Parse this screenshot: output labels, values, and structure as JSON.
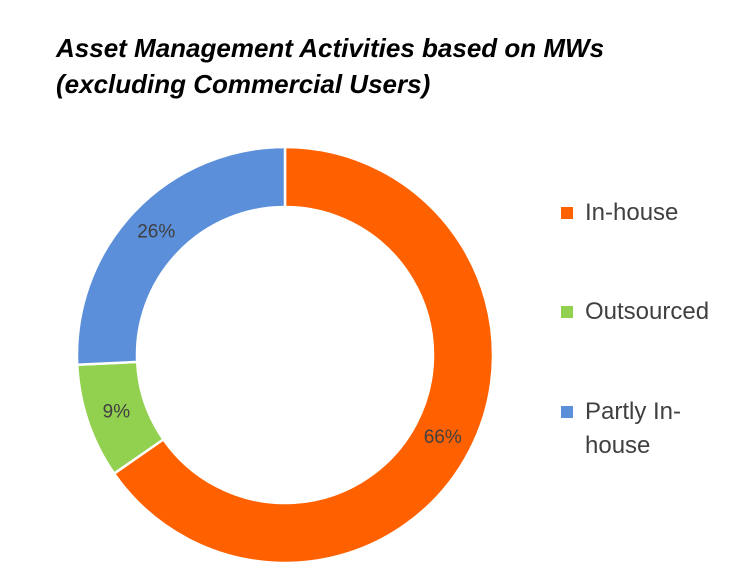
{
  "title_lines": [
    "Asset Management Activities based on MWs",
    "(excluding Commercial Users)"
  ],
  "chart_data": {
    "type": "pie",
    "variant": "donut",
    "title": "Asset Management Activities based on MWs (excluding Commercial Users)",
    "categories": [
      "In-house",
      "Outsourced",
      "Partly In-house"
    ],
    "values": [
      66,
      9,
      26
    ],
    "labels": [
      "66%",
      "9%",
      "26%"
    ],
    "unit": "%",
    "colors": [
      "#FF6100",
      "#92D050",
      "#5B8FD9"
    ],
    "legend_position": "right"
  },
  "legend": {
    "items": [
      {
        "label": "In-house",
        "color": "#FF6100"
      },
      {
        "label": "Outsourced",
        "color": "#92D050"
      },
      {
        "label": "Partly In-house",
        "color": "#5B8FD9"
      }
    ]
  }
}
